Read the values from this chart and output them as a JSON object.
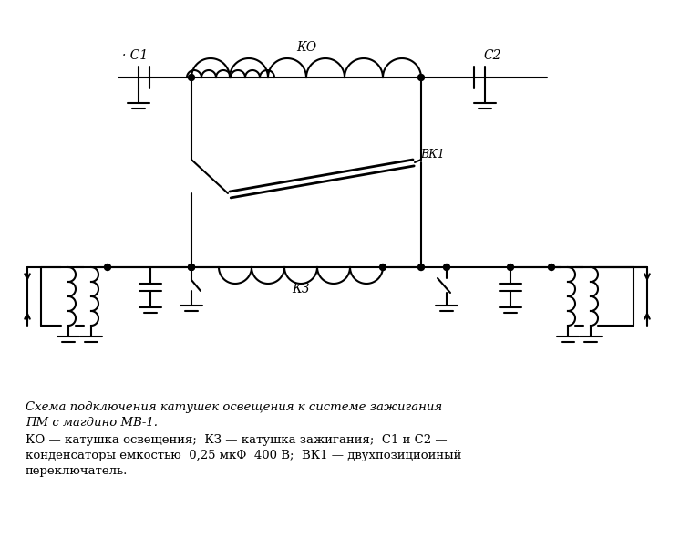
{
  "bg_color": "#ffffff",
  "lc": "#000000",
  "lw": 1.5,
  "title_line1": "Схема подключения катушек освещения к системе зажигания",
  "title_line2": "ПМ с магдино МВ-1.",
  "desc_line1": "КО — катушка освещения;  КЗ — катушка зажигания;  С1 и С2 —",
  "desc_line2": "конденсаторы емкостью  0,25 мкФ  400 В;  ВК1 — двухпозициоиный",
  "desc_line3": "переключатель.",
  "label_KO": "КО",
  "label_KZ": "КЗ",
  "label_C1": "· C1",
  "label_C2": "C2",
  "label_BK1": "ВК1"
}
